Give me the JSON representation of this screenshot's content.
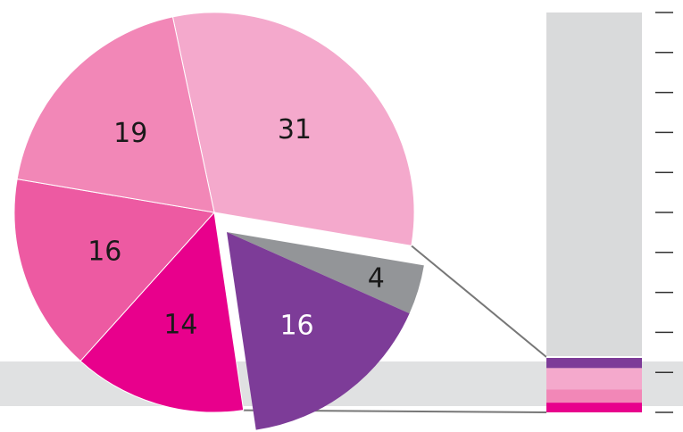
{
  "chart_data": {
    "type": "pie",
    "title": "",
    "slices": [
      {
        "label": "31",
        "value": 31,
        "color": "#f4a9cc"
      },
      {
        "label": "4",
        "value": 4,
        "color": "#939598",
        "exploded": true
      },
      {
        "label": "16",
        "value": 16,
        "color": "#7d3c98",
        "exploded": true
      },
      {
        "label": "14",
        "value": 14,
        "color": "#e8008c"
      },
      {
        "label": "16",
        "value": 16,
        "color": "#ed5aa2"
      },
      {
        "label": "19",
        "value": 19,
        "color": "#f287b7"
      }
    ],
    "breakout_bar": {
      "type": "stacked-bar",
      "segments": [
        {
          "value": 16,
          "color": "#7d3c98"
        },
        {
          "value": 31,
          "color": "#f4a9cc"
        },
        {
          "value": 19,
          "color": "#f287b7"
        },
        {
          "value": 14,
          "color": "#e8008c"
        }
      ]
    },
    "legend": "none",
    "grid": false,
    "colors": {
      "band": "#e0e1e2",
      "column": "#d9dadb",
      "connector": "#777777",
      "tick": "#333333"
    }
  }
}
